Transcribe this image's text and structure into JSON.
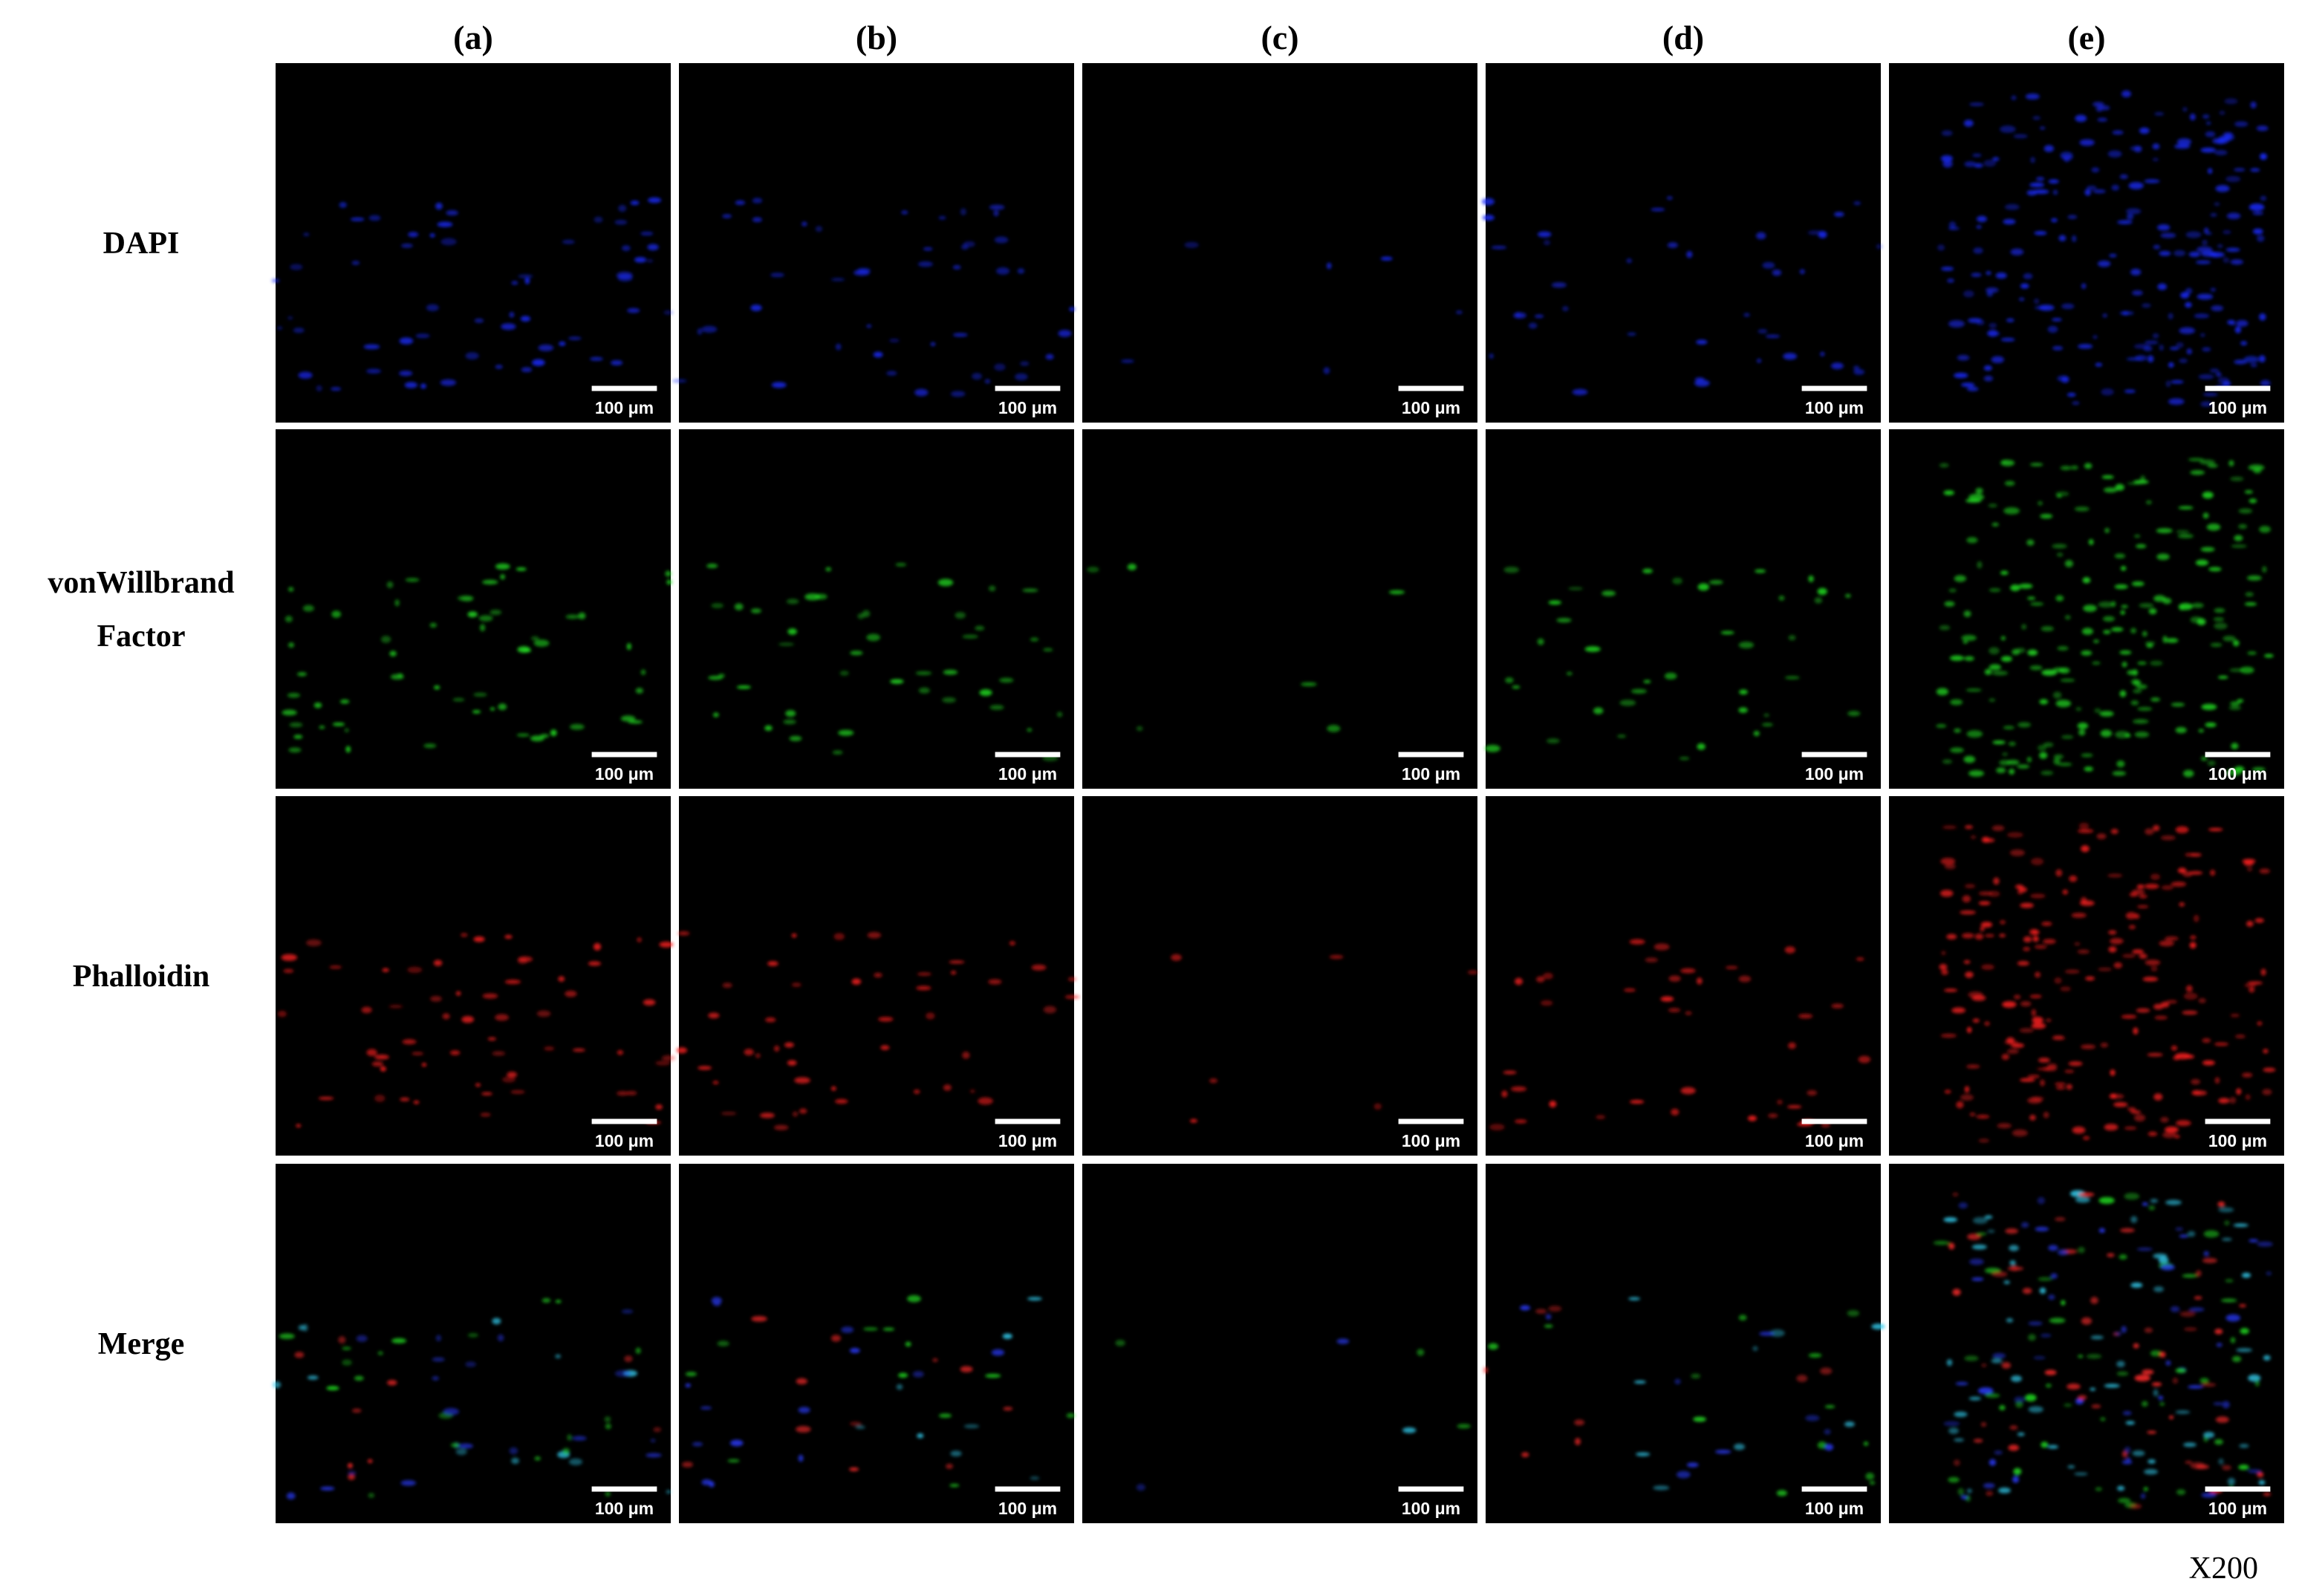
{
  "figure": {
    "column_labels": [
      "(a)",
      "(b)",
      "(c)",
      "(d)",
      "(e)"
    ],
    "row_labels": [
      [
        "DAPI"
      ],
      [
        "vonWillbrand",
        "Factor"
      ],
      [
        "Phalloidin"
      ],
      [
        "Merge"
      ]
    ],
    "scale_bar_label": "100 μm",
    "magnification": "X200"
  }
}
